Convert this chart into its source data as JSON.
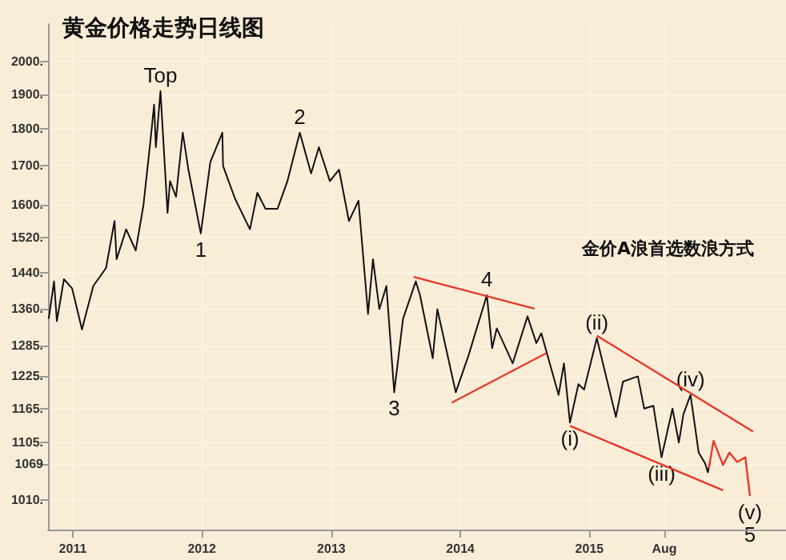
{
  "chart_data": {
    "type": "line",
    "title": "黄金价格走势日线图",
    "annotations": [
      "金价A浪首选数浪方式",
      {
        "text": "Top",
        "x": "2011-09-06",
        "y": 1910
      },
      {
        "text": "1",
        "x": "2011-12-29",
        "y": 1530
      },
      {
        "text": "2",
        "x": "2012-10-04",
        "y": 1790
      },
      {
        "text": "3",
        "x": "2013-06-28",
        "y": 1195
      },
      {
        "text": "4",
        "x": "2014-03-17",
        "y": 1390
      },
      {
        "text": "(i)",
        "x": "2014-11-07",
        "y": 1140
      },
      {
        "text": "(ii)",
        "x": "2015-01-22",
        "y": 1300
      },
      {
        "text": "(iii)",
        "x": "2015-07-24",
        "y": 1080
      },
      {
        "text": "(iv)",
        "x": "2015-10-14",
        "y": 1190
      },
      {
        "text": "(v)",
        "x": "2016-03-30",
        "y": 1017
      },
      {
        "text": "5",
        "x": "2016-03-30",
        "y": 1017
      }
    ],
    "series": [
      {
        "color": "#111111",
        "x": [
          "2010-10-25",
          "2010-11-09",
          "2010-11-17",
          "2010-12-07",
          "2010-12-30",
          "2011-01-27",
          "2011-02-28",
          "2011-04-05",
          "2011-04-29",
          "2011-05-05",
          "2011-06-01",
          "2011-06-28",
          "2011-07-20",
          "2011-08-10",
          "2011-08-19",
          "2011-08-24",
          "2011-09-06",
          "2011-09-26",
          "2011-10-03",
          "2011-10-20",
          "2011-11-08",
          "2011-11-24",
          "2011-12-29",
          "2012-01-25",
          "2012-02-28",
          "2012-03-01",
          "2012-04-04",
          "2012-05-16",
          "2012-06-06",
          "2012-06-29",
          "2012-08-02",
          "2012-08-30",
          "2012-10-04",
          "2012-11-05",
          "2012-11-27",
          "2012-12-28",
          "2013-01-23",
          "2013-02-20",
          "2013-03-19",
          "2013-04-15",
          "2013-04-29",
          "2013-05-17",
          "2013-06-06",
          "2013-06-28",
          "2013-07-23",
          "2013-08-28",
          "2013-09-09",
          "2013-10-15",
          "2013-10-28",
          "2013-12-19",
          "2014-01-24",
          "2014-03-17",
          "2014-04-01",
          "2014-04-14",
          "2014-05-29",
          "2014-07-10",
          "2014-08-04",
          "2014-08-18",
          "2014-10-06",
          "2014-10-21",
          "2014-11-07",
          "2014-12-01",
          "2014-12-17",
          "2015-01-22",
          "2015-03-17",
          "2015-04-06",
          "2015-05-18",
          "2015-06-05",
          "2015-07-01",
          "2015-07-24",
          "2015-08-24",
          "2015-09-11",
          "2015-09-24",
          "2015-10-14",
          "2015-11-06",
          "2015-11-24",
          "2015-12-02",
          "2015-12-07"
        ],
        "values": [
          1340,
          1420,
          1335,
          1425,
          1405,
          1318,
          1410,
          1450,
          1560,
          1470,
          1540,
          1490,
          1600,
          1780,
          1870,
          1750,
          1910,
          1580,
          1660,
          1620,
          1790,
          1690,
          1530,
          1710,
          1790,
          1700,
          1615,
          1540,
          1630,
          1590,
          1590,
          1660,
          1790,
          1680,
          1750,
          1660,
          1690,
          1560,
          1610,
          1350,
          1470,
          1360,
          1410,
          1195,
          1340,
          1420,
          1390,
          1260,
          1360,
          1195,
          1265,
          1390,
          1280,
          1320,
          1250,
          1345,
          1290,
          1310,
          1190,
          1250,
          1140,
          1210,
          1200,
          1300,
          1150,
          1215,
          1225,
          1165,
          1170,
          1080,
          1165,
          1105,
          1155,
          1190,
          1088,
          1070,
          1055,
          1069
        ]
      },
      {
        "type": "line",
        "color": "#e8392a",
        "x": [
          "2013-08-22",
          "2014-07-30"
        ],
        "values": [
          1430,
          1361
        ]
      },
      {
        "type": "line",
        "color": "#e8392a",
        "x": [
          "2013-12-08",
          "2014-09-01"
        ],
        "values": [
          1176,
          1270
        ]
      },
      {
        "type": "line",
        "color": "#e8392a",
        "x": [
          "2015-01-22",
          "2016-04-08"
        ],
        "values": [
          1305,
          1124
        ]
      },
      {
        "type": "line",
        "color": "#e8392a",
        "x": [
          "2014-11-07",
          "2016-01-14"
        ],
        "values": [
          1134,
          1026
        ]
      },
      {
        "type": "line",
        "color": "#e8392a",
        "x": [
          "2015-12-05",
          "2015-12-18",
          "2016-01-14",
          "2016-02-01",
          "2016-02-23",
          "2016-03-17",
          "2016-03-30"
        ],
        "values": [
          1062,
          1108,
          1067,
          1088,
          1072,
          1080,
          1017
        ]
      }
    ],
    "xlim": [
      "2010-10-23",
      "2016-07-10"
    ],
    "xticks": [
      "2011",
      "2012",
      "2013",
      "2014",
      "2015",
      {
        "value": "2015-08",
        "label": "Aug"
      }
    ],
    "ylim": [
      965,
      2120
    ],
    "yticks": [
      {
        "value": 1010,
        "label": "1010."
      },
      {
        "value": 1069,
        "label": "1069"
      },
      {
        "value": 1105,
        "label": "1105."
      },
      {
        "value": 1165,
        "label": "1165."
      },
      {
        "value": 1225,
        "label": "1225."
      },
      {
        "value": 1285,
        "label": "1285."
      },
      {
        "value": 1360,
        "label": "1360."
      },
      {
        "value": 1440,
        "label": "1440."
      },
      {
        "value": 1520,
        "label": "1520."
      },
      {
        "value": 1600,
        "label": "1600."
      },
      {
        "value": 1700,
        "label": "1700."
      },
      {
        "value": 1800,
        "label": "1800."
      },
      {
        "value": 1900,
        "label": "1900."
      },
      {
        "value": 2000,
        "label": "2000."
      }
    ],
    "log": "y",
    "grid": true,
    "marker": "none"
  }
}
